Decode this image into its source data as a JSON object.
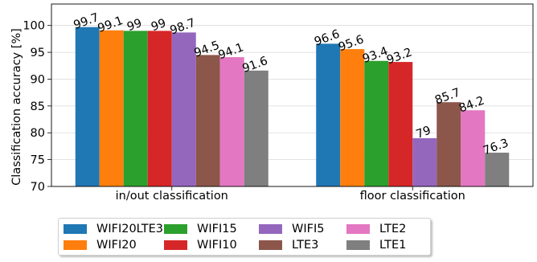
{
  "chart_data": {
    "type": "bar",
    "categories": [
      "in/out classification",
      "floor classification"
    ],
    "ylabel": "Classification accuracy [%]",
    "xlabel": "",
    "title": "",
    "ylim": [
      70,
      104
    ],
    "yticks": [
      70,
      75,
      80,
      85,
      90,
      95,
      100
    ],
    "grid": true,
    "legend_position": "bottom-center",
    "series": [
      {
        "name": "WIFI20LTE3",
        "color": "#1f77b4",
        "values": [
          99.7,
          96.6
        ],
        "labels": [
          "99.7",
          "96.6"
        ]
      },
      {
        "name": "WIFI20",
        "color": "#ff7f0e",
        "values": [
          99.1,
          95.6
        ],
        "labels": [
          "99.1",
          "95.6"
        ]
      },
      {
        "name": "WIFI15",
        "color": "#2ca02c",
        "values": [
          99,
          93.4
        ],
        "labels": [
          "99",
          "93.4"
        ]
      },
      {
        "name": "WIFI10",
        "color": "#d62728",
        "values": [
          99,
          93.2
        ],
        "labels": [
          "99",
          "93.2"
        ]
      },
      {
        "name": "WIFI5",
        "color": "#9467bd",
        "values": [
          98.7,
          79
        ],
        "labels": [
          "98.7",
          "79"
        ]
      },
      {
        "name": "LTE3",
        "color": "#8c564b",
        "values": [
          94.5,
          85.7
        ],
        "labels": [
          "94.5",
          "85.7"
        ]
      },
      {
        "name": "LTE2",
        "color": "#e377c2",
        "values": [
          94.1,
          84.2
        ],
        "labels": [
          "94.1",
          "84.2"
        ]
      },
      {
        "name": "LTE1",
        "color": "#7f7f7f",
        "values": [
          91.6,
          76.3
        ],
        "labels": [
          "91.6",
          "76.3"
        ]
      }
    ]
  }
}
